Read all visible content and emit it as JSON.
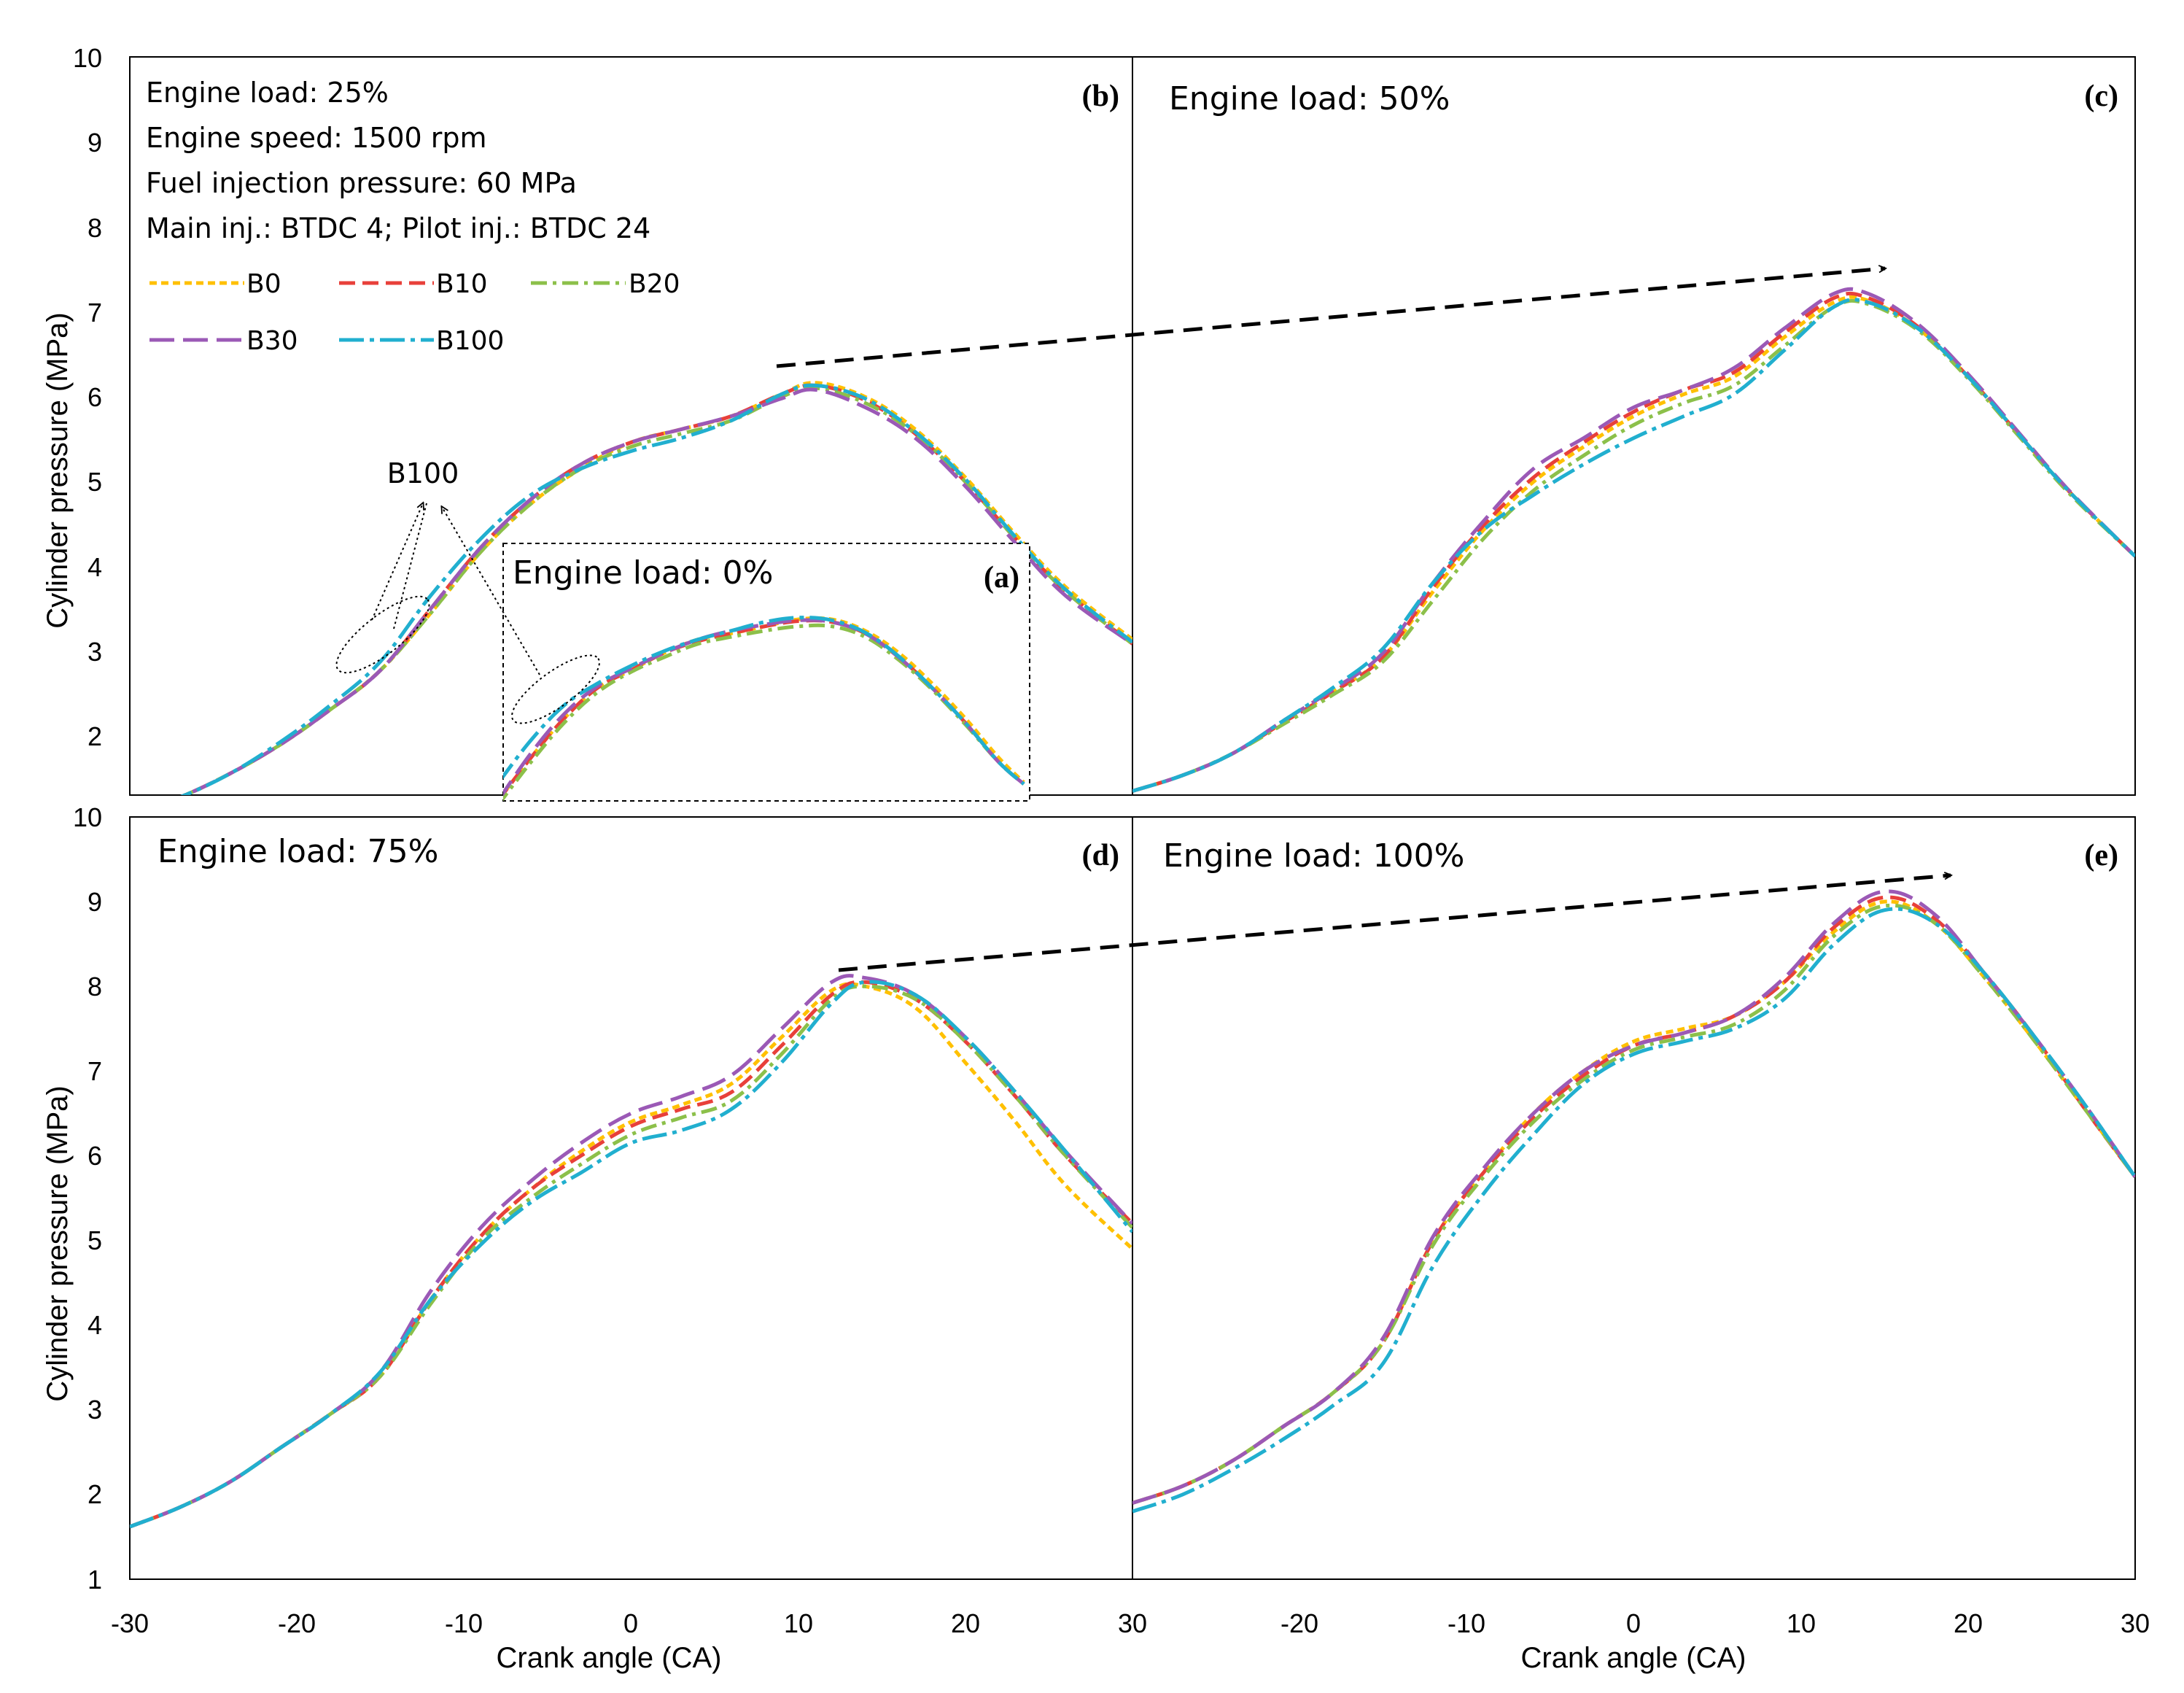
{
  "figure": {
    "y_label": "Cylinder pressure (MPa)",
    "x_label": "Crank angle (CA)",
    "y_ticks": [
      "1",
      "2",
      "3",
      "4",
      "5",
      "6",
      "7",
      "8",
      "9",
      "10"
    ],
    "x_ticks": [
      "-30",
      "-20",
      "-10",
      "0",
      "10",
      "20",
      "30"
    ],
    "conditions": [
      "Engine load: 25%",
      "Engine speed: 1500 rpm",
      "Fuel injection pressure: 60 MPa",
      "Main inj.:  BTDC 4; Pilot inj.: BTDC 24"
    ],
    "callout": "B100",
    "legend": [
      {
        "name": "B0",
        "color": "#FFC000",
        "dash": "short"
      },
      {
        "name": "B10",
        "color": "#E8403A",
        "dash": "dash"
      },
      {
        "name": "B20",
        "color": "#8CC04A",
        "dash": "dashdot"
      },
      {
        "name": "B30",
        "color": "#9B59B6",
        "dash": "longdash"
      },
      {
        "name": "B100",
        "color": "#21AFCF",
        "dash": "longdashdot"
      }
    ],
    "panels": {
      "b": {
        "letter": "(b)",
        "title": ""
      },
      "a": {
        "letter": "(a)",
        "title": "Engine load: 0%"
      },
      "c": {
        "letter": "(c)",
        "title": "Engine load: 50%"
      },
      "d": {
        "letter": "(d)",
        "title": "Engine load: 75%"
      },
      "e": {
        "letter": "(e)",
        "title": "Engine load: 100%"
      }
    }
  },
  "chart_data": [
    {
      "id": "b",
      "type": "line",
      "title": "Engine load: 25%",
      "xlim": [
        -30,
        30
      ],
      "ylim": [
        1,
        10
      ],
      "xlabel": "Crank angle (CA)",
      "ylabel": "Cylinder pressure (MPa)",
      "x": [
        -30,
        -27,
        -24,
        -21,
        -18,
        -15,
        -12,
        -9,
        -6,
        -3,
        0,
        3,
        6,
        9,
        11,
        14,
        17,
        20,
        23,
        26,
        30
      ],
      "series": [
        {
          "name": "B0",
          "values": [
            1.35,
            1.55,
            1.82,
            2.15,
            2.55,
            3.0,
            3.65,
            4.35,
            4.9,
            5.3,
            5.6,
            5.75,
            5.9,
            6.15,
            6.28,
            6.12,
            5.75,
            5.2,
            4.55,
            3.95,
            3.35
          ]
        },
        {
          "name": "B10",
          "values": [
            1.35,
            1.55,
            1.82,
            2.15,
            2.55,
            3.0,
            3.7,
            4.4,
            4.95,
            5.35,
            5.6,
            5.75,
            5.9,
            6.15,
            6.25,
            6.08,
            5.7,
            5.15,
            4.5,
            3.9,
            3.3
          ]
        },
        {
          "name": "B20",
          "values": [
            1.35,
            1.55,
            1.82,
            2.15,
            2.55,
            3.0,
            3.65,
            4.35,
            4.9,
            5.3,
            5.55,
            5.7,
            5.85,
            6.12,
            6.22,
            6.05,
            5.7,
            5.15,
            4.5,
            3.9,
            3.3
          ]
        },
        {
          "name": "B30",
          "values": [
            1.35,
            1.55,
            1.82,
            2.15,
            2.55,
            3.0,
            3.7,
            4.4,
            4.95,
            5.35,
            5.6,
            5.75,
            5.9,
            6.1,
            6.2,
            6.0,
            5.65,
            5.1,
            4.45,
            3.85,
            3.3
          ]
        },
        {
          "name": "B100",
          "values": [
            1.35,
            1.55,
            1.82,
            2.18,
            2.6,
            3.1,
            3.85,
            4.5,
            5.0,
            5.3,
            5.5,
            5.65,
            5.85,
            6.15,
            6.25,
            6.1,
            5.72,
            5.18,
            4.52,
            3.92,
            3.32
          ]
        }
      ]
    },
    {
      "id": "a",
      "type": "line",
      "title": "Engine load: 0%",
      "x": [
        -8,
        -6,
        -4,
        -2,
        0,
        2,
        4,
        6,
        8,
        10,
        12,
        14,
        16,
        18,
        20,
        22,
        23.5
      ],
      "series": [
        {
          "name": "B0",
          "values": [
            1.5,
            2.0,
            2.45,
            2.8,
            3.0,
            3.2,
            3.35,
            3.42,
            3.5,
            3.58,
            3.58,
            3.45,
            3.2,
            2.85,
            2.45,
            2.0,
            1.72
          ]
        },
        {
          "name": "B10",
          "values": [
            1.5,
            2.0,
            2.45,
            2.8,
            3.0,
            3.2,
            3.33,
            3.42,
            3.5,
            3.56,
            3.55,
            3.42,
            3.15,
            2.8,
            2.4,
            1.95,
            1.7
          ]
        },
        {
          "name": "B20",
          "values": [
            1.45,
            1.95,
            2.4,
            2.75,
            2.98,
            3.15,
            3.3,
            3.38,
            3.45,
            3.5,
            3.5,
            3.38,
            3.12,
            2.78,
            2.38,
            1.95,
            1.7
          ]
        },
        {
          "name": "B30",
          "values": [
            1.5,
            2.05,
            2.5,
            2.82,
            3.02,
            3.2,
            3.35,
            3.45,
            3.52,
            3.57,
            3.55,
            3.42,
            3.15,
            2.8,
            2.4,
            1.95,
            1.7
          ]
        },
        {
          "name": "B100",
          "values": [
            1.7,
            2.2,
            2.6,
            2.85,
            3.05,
            3.22,
            3.35,
            3.45,
            3.55,
            3.6,
            3.57,
            3.43,
            3.16,
            2.8,
            2.4,
            1.95,
            1.7
          ]
        }
      ]
    },
    {
      "id": "c",
      "type": "line",
      "title": "Engine load: 50%",
      "xlim": [
        -30,
        30
      ],
      "ylim": [
        1,
        10
      ],
      "x": [
        -30,
        -27,
        -24,
        -21,
        -18,
        -15,
        -12,
        -9,
        -6,
        -3,
        0,
        3,
        6,
        9,
        12,
        14,
        17,
        20,
        23,
        26,
        30
      ],
      "series": [
        {
          "name": "B0",
          "values": [
            1.62,
            1.8,
            2.05,
            2.4,
            2.75,
            3.15,
            3.9,
            4.6,
            5.15,
            5.55,
            5.9,
            6.15,
            6.35,
            6.8,
            7.2,
            7.22,
            6.9,
            6.35,
            5.7,
            5.05,
            4.3
          ]
        },
        {
          "name": "B10",
          "values": [
            1.62,
            1.8,
            2.05,
            2.4,
            2.75,
            3.15,
            3.95,
            4.65,
            5.2,
            5.6,
            5.95,
            6.2,
            6.4,
            6.85,
            7.25,
            7.25,
            6.92,
            6.35,
            5.7,
            5.05,
            4.3
          ]
        },
        {
          "name": "B20",
          "values": [
            1.62,
            1.8,
            2.05,
            2.38,
            2.72,
            3.1,
            3.8,
            4.5,
            5.05,
            5.45,
            5.8,
            6.05,
            6.25,
            6.7,
            7.15,
            7.18,
            6.88,
            6.33,
            5.68,
            5.03,
            4.3
          ]
        },
        {
          "name": "B30",
          "values": [
            1.62,
            1.8,
            2.05,
            2.42,
            2.78,
            3.2,
            4.0,
            4.7,
            5.3,
            5.65,
            6.0,
            6.2,
            6.45,
            6.9,
            7.3,
            7.3,
            6.95,
            6.38,
            5.72,
            5.06,
            4.3
          ]
        },
        {
          "name": "B100",
          "values": [
            1.62,
            1.8,
            2.05,
            2.42,
            2.8,
            3.25,
            4.0,
            4.6,
            5.0,
            5.35,
            5.65,
            5.9,
            6.15,
            6.65,
            7.15,
            7.2,
            6.9,
            6.35,
            5.7,
            5.05,
            4.3
          ]
        }
      ]
    },
    {
      "id": "d",
      "type": "line",
      "title": "Engine load: 75%",
      "xlim": [
        -30,
        30
      ],
      "ylim": [
        1,
        10
      ],
      "xlabel": "Crank angle (CA)",
      "ylabel": "Cylinder pressure (MPa)",
      "x": [
        -30,
        -27,
        -24,
        -21,
        -18,
        -15,
        -12,
        -9,
        -6,
        -3,
        0,
        3,
        6,
        9,
        12,
        14,
        17,
        20,
        23,
        26,
        30
      ],
      "series": [
        {
          "name": "B0",
          "values": [
            1.62,
            1.85,
            2.15,
            2.55,
            2.95,
            3.4,
            4.3,
            5.05,
            5.6,
            6.05,
            6.4,
            6.6,
            6.85,
            7.4,
            7.95,
            8.0,
            7.75,
            7.1,
            6.4,
            5.65,
            4.9
          ]
        },
        {
          "name": "B10",
          "values": [
            1.62,
            1.85,
            2.15,
            2.55,
            2.95,
            3.4,
            4.3,
            5.05,
            5.6,
            6.0,
            6.35,
            6.55,
            6.75,
            7.3,
            7.9,
            8.05,
            7.85,
            7.35,
            6.7,
            6.0,
            5.2
          ]
        },
        {
          "name": "B20",
          "values": [
            1.62,
            1.85,
            2.15,
            2.55,
            2.95,
            3.4,
            4.25,
            5.0,
            5.5,
            5.9,
            6.25,
            6.45,
            6.65,
            7.2,
            7.85,
            8.0,
            7.85,
            7.35,
            6.7,
            6.0,
            5.15
          ]
        },
        {
          "name": "B30",
          "values": [
            1.62,
            1.85,
            2.15,
            2.55,
            2.95,
            3.45,
            4.4,
            5.15,
            5.7,
            6.15,
            6.5,
            6.7,
            6.95,
            7.5,
            8.05,
            8.1,
            7.9,
            7.4,
            6.75,
            6.05,
            5.2
          ]
        },
        {
          "name": "B100",
          "values": [
            1.62,
            1.85,
            2.15,
            2.55,
            2.95,
            3.45,
            4.3,
            4.95,
            5.45,
            5.8,
            6.15,
            6.3,
            6.55,
            7.1,
            7.8,
            8.05,
            7.9,
            7.4,
            6.75,
            6.05,
            5.1
          ]
        }
      ]
    },
    {
      "id": "e",
      "type": "line",
      "title": "Engine load: 100%",
      "xlim": [
        -30,
        30
      ],
      "ylim": [
        1,
        10
      ],
      "xlabel": "Crank angle (CA)",
      "x": [
        -30,
        -27,
        -24,
        -21,
        -18,
        -15,
        -12,
        -9,
        -6,
        -3,
        0,
        3,
        6,
        9,
        12,
        15,
        18,
        21,
        24,
        27,
        30
      ],
      "series": [
        {
          "name": "B0",
          "values": [
            1.9,
            2.1,
            2.4,
            2.8,
            3.2,
            3.8,
            5.0,
            5.8,
            6.5,
            7.0,
            7.35,
            7.5,
            7.65,
            8.05,
            8.65,
            9.0,
            8.75,
            8.1,
            7.35,
            6.55,
            5.75
          ]
        },
        {
          "name": "B10",
          "values": [
            1.9,
            2.1,
            2.4,
            2.8,
            3.2,
            3.8,
            5.0,
            5.8,
            6.45,
            6.95,
            7.3,
            7.45,
            7.65,
            8.05,
            8.7,
            9.05,
            8.8,
            8.15,
            7.4,
            6.55,
            5.75
          ]
        },
        {
          "name": "B20",
          "values": [
            1.9,
            2.1,
            2.4,
            2.8,
            3.2,
            3.8,
            4.95,
            5.75,
            6.4,
            6.9,
            7.25,
            7.4,
            7.55,
            7.95,
            8.6,
            8.95,
            8.75,
            8.1,
            7.35,
            6.55,
            5.75
          ]
        },
        {
          "name": "B30",
          "values": [
            1.9,
            2.1,
            2.4,
            2.8,
            3.2,
            3.85,
            5.05,
            5.85,
            6.5,
            7.0,
            7.3,
            7.45,
            7.65,
            8.1,
            8.75,
            9.12,
            8.85,
            8.15,
            7.4,
            6.6,
            5.75
          ]
        },
        {
          "name": "B100",
          "values": [
            1.8,
            2.0,
            2.3,
            2.65,
            3.05,
            3.55,
            4.7,
            5.55,
            6.25,
            6.85,
            7.2,
            7.35,
            7.5,
            7.85,
            8.5,
            8.9,
            8.75,
            8.15,
            7.4,
            6.6,
            5.75
          ]
        }
      ]
    }
  ]
}
